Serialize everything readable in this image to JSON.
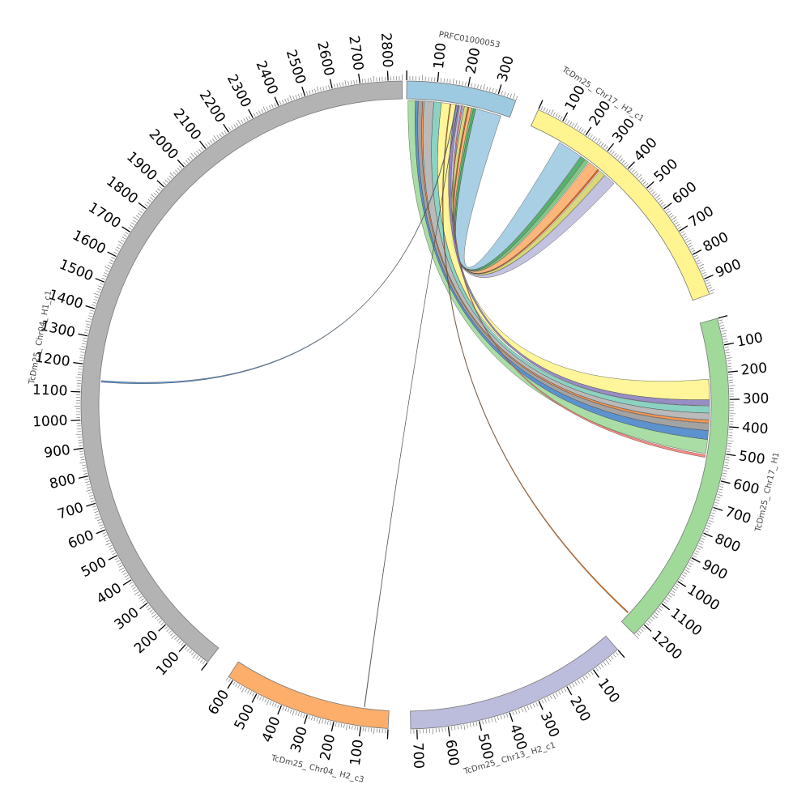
{
  "chart_data": {
    "type": "circos",
    "title": "",
    "unit_scale": "kb",
    "segments": [
      {
        "id": "PRFC",
        "name": "PRFC01000053",
        "length": 360,
        "color": "#9ecae1",
        "ticks": [
          100,
          200,
          300
        ]
      },
      {
        "id": "H2c1",
        "name": "TcDm25_ Chr17_ H2_c1",
        "length": 960,
        "color": "#fff48f",
        "ticks": [
          100,
          200,
          300,
          400,
          500,
          600,
          700,
          800,
          900
        ]
      },
      {
        "id": "H1",
        "name": "TcDm25_ Chr17_ H1",
        "length": 1250,
        "color": "#a1d99b",
        "ticks": [
          100,
          200,
          300,
          400,
          500,
          600,
          700,
          800,
          900,
          1000,
          1100,
          1200
        ]
      },
      {
        "id": "Chr13",
        "name": "TcDm25_ Chr13_ H2_c1",
        "length": 720,
        "color": "#bcbddc",
        "ticks": [
          100,
          200,
          300,
          400,
          500,
          600,
          700
        ]
      },
      {
        "id": "Chr04c3",
        "name": "TcDm25_ Chr04_ H2_c3",
        "length": 620,
        "color": "#fdae6b",
        "ticks": [
          100,
          200,
          300,
          400,
          500,
          600
        ]
      },
      {
        "id": "Chr04c1",
        "name": "TcDm25_ Chr04_ H1_c1",
        "length": 2850,
        "color": "#b3b3b3",
        "ticks": [
          100,
          200,
          300,
          400,
          500,
          600,
          700,
          800,
          900,
          1000,
          1100,
          1200,
          1300,
          1400,
          1500,
          1600,
          1700,
          1800,
          1900,
          2000,
          2100,
          2200,
          2300,
          2400,
          2500,
          2600,
          2700,
          2800
        ]
      }
    ],
    "links": [
      {
        "from": "PRFC",
        "f1": 240,
        "f2": 330,
        "to": "H2c1",
        "t1": 130,
        "t2": 230,
        "color": "#9ecae1"
      },
      {
        "from": "PRFC",
        "f1": 232,
        "f2": 240,
        "to": "H2c1",
        "t1": 232,
        "t2": 250,
        "color": "#41ab5d"
      },
      {
        "from": "PRFC",
        "f1": 226,
        "f2": 232,
        "to": "H2c1",
        "t1": 252,
        "t2": 268,
        "color": "#74c476"
      },
      {
        "from": "PRFC",
        "f1": 216,
        "f2": 226,
        "to": "H2c1",
        "t1": 272,
        "t2": 315,
        "color": "#fdae6b"
      },
      {
        "from": "PRFC",
        "f1": 212,
        "f2": 216,
        "to": "H2c1",
        "t1": 315,
        "t2": 322,
        "color": "#e6550d"
      },
      {
        "from": "PRFC",
        "f1": 200,
        "f2": 212,
        "to": "H2c1",
        "t1": 326,
        "t2": 350,
        "color": "#d6d36a"
      },
      {
        "from": "PRFC",
        "f1": 184,
        "f2": 200,
        "to": "H2c1",
        "t1": 352,
        "t2": 400,
        "color": "#bcbddc"
      },
      {
        "from": "PRFC",
        "f1": 120,
        "f2": 170,
        "to": "H1",
        "t1": 220,
        "t2": 300,
        "color": "#fff48f"
      },
      {
        "from": "PRFC",
        "f1": 170,
        "f2": 182,
        "to": "H1",
        "t1": 300,
        "t2": 322,
        "color": "#8c82c0"
      },
      {
        "from": "PRFC",
        "f1": 94,
        "f2": 120,
        "to": "H1",
        "t1": 324,
        "t2": 352,
        "color": "#7fcdbb"
      },
      {
        "from": "PRFC",
        "f1": 60,
        "f2": 94,
        "to": "H1",
        "t1": 352,
        "t2": 378,
        "color": "#b3b3b3"
      },
      {
        "from": "PRFC",
        "f1": 55,
        "f2": 60,
        "to": "H1",
        "t1": 380,
        "t2": 390,
        "color": "#fd8d3c"
      },
      {
        "from": "PRFC",
        "f1": 40,
        "f2": 55,
        "to": "H1",
        "t1": 392,
        "t2": 420,
        "color": "#999999"
      },
      {
        "from": "PRFC",
        "f1": 30,
        "f2": 40,
        "to": "H1",
        "t1": 420,
        "t2": 455,
        "color": "#4a86c8"
      },
      {
        "from": "PRFC",
        "f1": 5,
        "f2": 30,
        "to": "H1",
        "t1": 455,
        "t2": 510,
        "color": "#a1d99b"
      },
      {
        "from": "PRFC",
        "f1": 190,
        "f2": 194,
        "to": "H1",
        "t1": 515,
        "t2": 525,
        "color": "#fb8072"
      },
      {
        "from": "PRFC",
        "f1": 150,
        "f2": 153,
        "to": "H1",
        "t1": 1205,
        "t2": 1210,
        "color": "#d95f02"
      },
      {
        "from": "PRFC",
        "f1": 170,
        "f2": 172,
        "to": "Chr04c1",
        "t1": 1140,
        "t2": 1146,
        "color": "#4a86c8"
      },
      {
        "from": "PRFC",
        "f1": 178,
        "f2": 179,
        "to": "Chr04c3",
        "t1": 95,
        "t2": 97,
        "color": "#636363"
      }
    ]
  }
}
